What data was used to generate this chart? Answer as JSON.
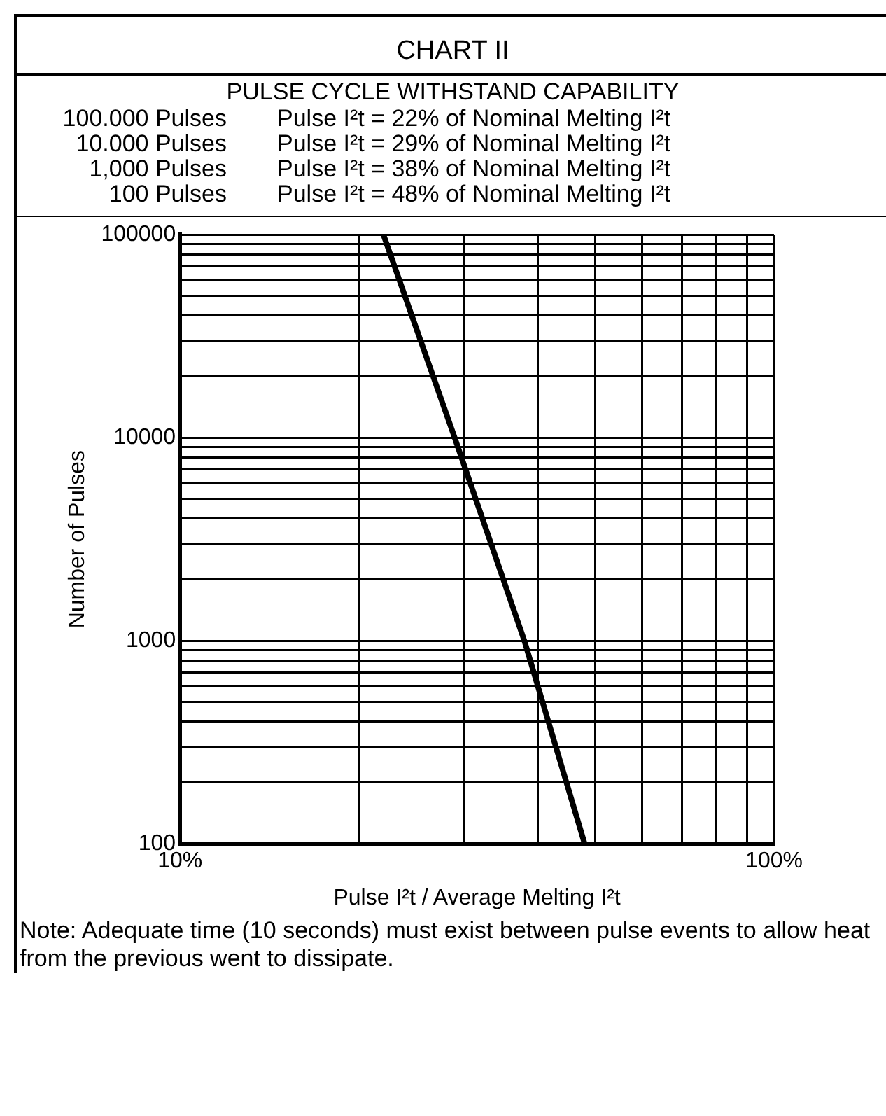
{
  "chart_data": {
    "type": "line",
    "title": "CHART II",
    "subtitle": "PULSE CYCLE WITHSTAND CAPABILITY",
    "xlabel": "Pulse I²t / Average Melting I²t",
    "ylabel": "Number of Pulses",
    "annotations": [
      "100.000 Pulses",
      "Pulse I²t = 22% of Nominal Melting I²t",
      "10.000 Pulses",
      "Pulse I²t = 29% of Nominal Melting I²t",
      "1,000 Pulses",
      "Pulse I²t = 38% of Nominal Melting I²t",
      "100 Pulses",
      "Pulse I²t = 48% of Nominal Melting I²t",
      "Note: Adequate time (10 seconds) must exist between pulse events to allow heat from the previous went to dissipate."
    ],
    "series": [
      {
        "color": "#000000",
        "x": [
          22,
          29,
          38,
          48
        ],
        "values": [
          100000,
          10000,
          1000,
          100
        ]
      }
    ],
    "log": "xy",
    "xlim": [
      10,
      100
    ],
    "ylim": [
      100,
      100000
    ],
    "xticks": [
      {
        "value": 10,
        "label": "10%"
      },
      {
        "value": 20,
        "label": null
      },
      {
        "value": 30,
        "label": null
      },
      {
        "value": 40,
        "label": null
      },
      {
        "value": 50,
        "label": null
      },
      {
        "value": 60,
        "label": null
      },
      {
        "value": 70,
        "label": null
      },
      {
        "value": 80,
        "label": null
      },
      {
        "value": 90,
        "label": null
      },
      {
        "value": 100,
        "label": "100%"
      }
    ],
    "yticks": [
      100,
      {
        "value": 200,
        "label": null
      },
      {
        "value": 300,
        "label": null
      },
      {
        "value": 400,
        "label": null
      },
      {
        "value": 500,
        "label": null
      },
      {
        "value": 600,
        "label": null
      },
      {
        "value": 700,
        "label": null
      },
      {
        "value": 800,
        "label": null
      },
      {
        "value": 900,
        "label": null
      },
      1000,
      {
        "value": 2000,
        "label": null
      },
      {
        "value": 3000,
        "label": null
      },
      {
        "value": 4000,
        "label": null
      },
      {
        "value": 5000,
        "label": null
      },
      {
        "value": 6000,
        "label": null
      },
      {
        "value": 7000,
        "label": null
      },
      {
        "value": 8000,
        "label": null
      },
      {
        "value": 9000,
        "label": null
      },
      10000,
      {
        "value": 20000,
        "label": null
      },
      {
        "value": 30000,
        "label": null
      },
      {
        "value": 40000,
        "label": null
      },
      {
        "value": 50000,
        "label": null
      },
      {
        "value": 60000,
        "label": null
      },
      {
        "value": 70000,
        "label": null
      },
      {
        "value": 80000,
        "label": null
      },
      {
        "value": 90000,
        "label": null
      },
      100000
    ],
    "grid": true,
    "legend": false,
    "marker": "none",
    "line_style": "solid"
  }
}
